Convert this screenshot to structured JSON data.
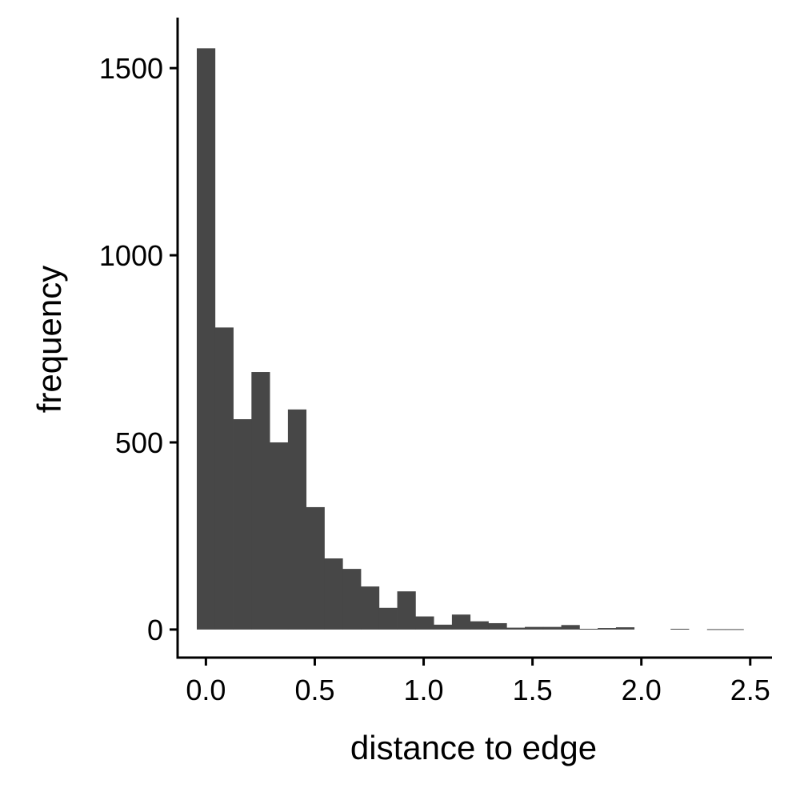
{
  "chart_data": {
    "type": "bar",
    "title": "",
    "xlabel": "distance to edge",
    "ylabel": "frequency",
    "bar_color": "#474747",
    "axis_color": "#000000",
    "bin_width": 0.0837,
    "first_bin_left": -0.0419,
    "bins": [
      {
        "x": 0.0,
        "value": 1553
      },
      {
        "x": 0.084,
        "value": 807
      },
      {
        "x": 0.167,
        "value": 562
      },
      {
        "x": 0.251,
        "value": 688
      },
      {
        "x": 0.335,
        "value": 500
      },
      {
        "x": 0.419,
        "value": 588
      },
      {
        "x": 0.502,
        "value": 327
      },
      {
        "x": 0.586,
        "value": 190
      },
      {
        "x": 0.67,
        "value": 162
      },
      {
        "x": 0.753,
        "value": 115
      },
      {
        "x": 0.837,
        "value": 58
      },
      {
        "x": 0.921,
        "value": 102
      },
      {
        "x": 1.005,
        "value": 35
      },
      {
        "x": 1.088,
        "value": 13
      },
      {
        "x": 1.172,
        "value": 40
      },
      {
        "x": 1.256,
        "value": 22
      },
      {
        "x": 1.339,
        "value": 17
      },
      {
        "x": 1.423,
        "value": 5
      },
      {
        "x": 1.507,
        "value": 7
      },
      {
        "x": 1.591,
        "value": 7
      },
      {
        "x": 1.674,
        "value": 12
      },
      {
        "x": 1.758,
        "value": 2
      },
      {
        "x": 1.842,
        "value": 4
      },
      {
        "x": 1.926,
        "value": 6
      },
      {
        "x": 2.009,
        "value": 0
      },
      {
        "x": 2.093,
        "value": 0
      },
      {
        "x": 2.177,
        "value": 2
      },
      {
        "x": 2.26,
        "value": 0
      },
      {
        "x": 2.344,
        "value": 1
      },
      {
        "x": 2.428,
        "value": 1
      }
    ],
    "xlim": [
      -0.13,
      2.6
    ],
    "ylim": [
      -75,
      1635
    ],
    "xticks": [
      0.0,
      0.5,
      1.0,
      1.5,
      2.0,
      2.5
    ],
    "xtick_labels": [
      "0.0",
      "0.5",
      "1.0",
      "1.5",
      "2.0",
      "2.5"
    ],
    "yticks": [
      0,
      500,
      1000,
      1500
    ],
    "ytick_labels": [
      "0",
      "500",
      "1000",
      "1500"
    ],
    "grid": false,
    "legend": "none"
  }
}
